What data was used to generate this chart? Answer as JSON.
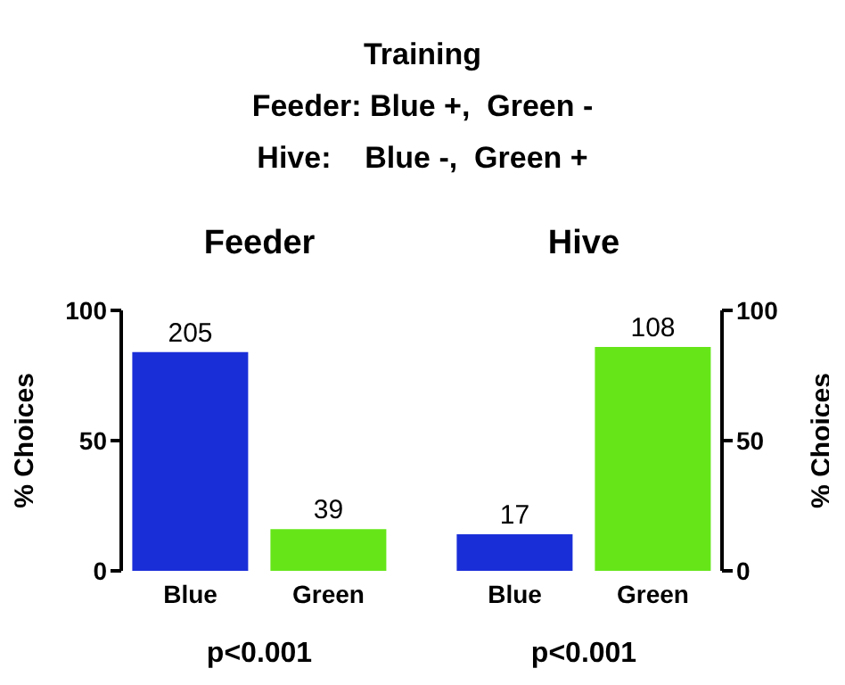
{
  "chart_data": [
    {
      "type": "bar",
      "title": "Feeder",
      "categories": [
        "Blue",
        "Green"
      ],
      "values": [
        84,
        16
      ],
      "colors": [
        "#1a2ed8",
        "#66e619"
      ],
      "ylim": [
        0,
        100
      ],
      "yticks": [
        0,
        50,
        100
      ],
      "ylabel": "% Choices",
      "grid": false,
      "legend": false,
      "annotations": [
        "Training",
        "Feeder: Blue +,  Green -",
        "Hive:    Blue -,  Green +",
        "p<0.001",
        {
          "text": "205",
          "x": "Blue",
          "y": 84
        },
        {
          "text": "39",
          "x": "Green",
          "y": 16
        }
      ]
    },
    {
      "type": "bar",
      "title": "Hive",
      "categories": [
        "Blue",
        "Green"
      ],
      "values": [
        14,
        86
      ],
      "colors": [
        "#1a2ed8",
        "#66e619"
      ],
      "ylim": [
        0,
        100
      ],
      "yticks": [
        0,
        50,
        100
      ],
      "ylabel": "% Choices",
      "grid": false,
      "legend": false,
      "annotations": [
        "p<0.001",
        {
          "text": "17",
          "x": "Blue",
          "y": 14
        },
        {
          "text": "108",
          "x": "Green",
          "y": 86
        }
      ]
    }
  ]
}
